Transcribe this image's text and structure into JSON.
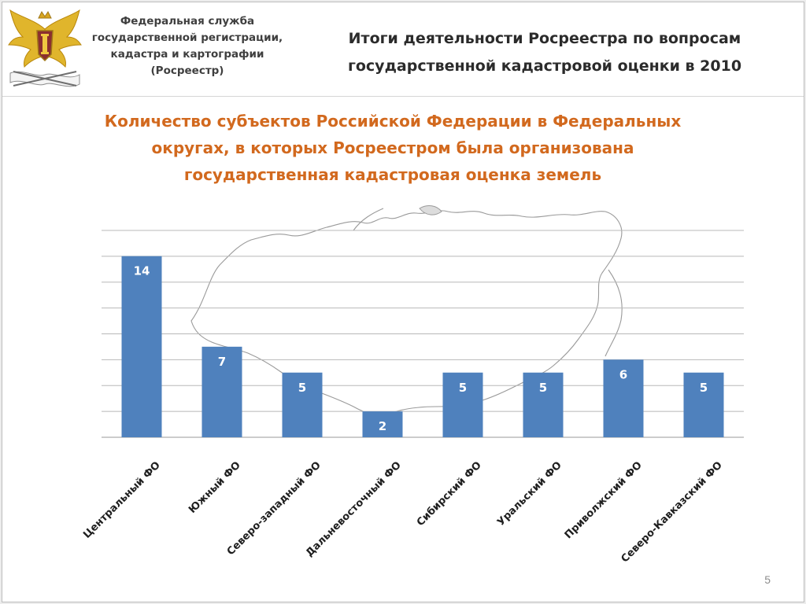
{
  "header": {
    "org_name": [
      "Федеральная служба",
      "государственной регистрации,",
      "кадастра и картографии",
      "(Росреестр)"
    ],
    "title": [
      "Итоги деятельности Росреестра по вопросам",
      "государственной кадастровой оценки в 2010"
    ]
  },
  "chart_title": [
    "Количество субъектов Российской Федерации в Федеральных",
    "округах, в которых Росреестром была организована",
    "государственная кадастровая оценка земель"
  ],
  "page_number": "5",
  "colors": {
    "bar": "#4f81bd",
    "title_orange": "#d2691e",
    "gridline": "#b8b8b8",
    "map_outline": "#9a9a9a",
    "label_text": "#ffffff"
  },
  "chart_data": {
    "type": "bar",
    "categories": [
      "Центральный ФО",
      "Южный ФО",
      "Северо-западный ФО",
      "Дальневосточный ФО",
      "Сибирский ФО",
      "Уральский ФО",
      "Приволжский ФО",
      "Северо-Кавказский ФО"
    ],
    "values": [
      14,
      7,
      5,
      2,
      5,
      5,
      6,
      5
    ],
    "data_labels": true,
    "grid": true,
    "legend": "none",
    "xlabel": "",
    "ylabel": ""
  }
}
